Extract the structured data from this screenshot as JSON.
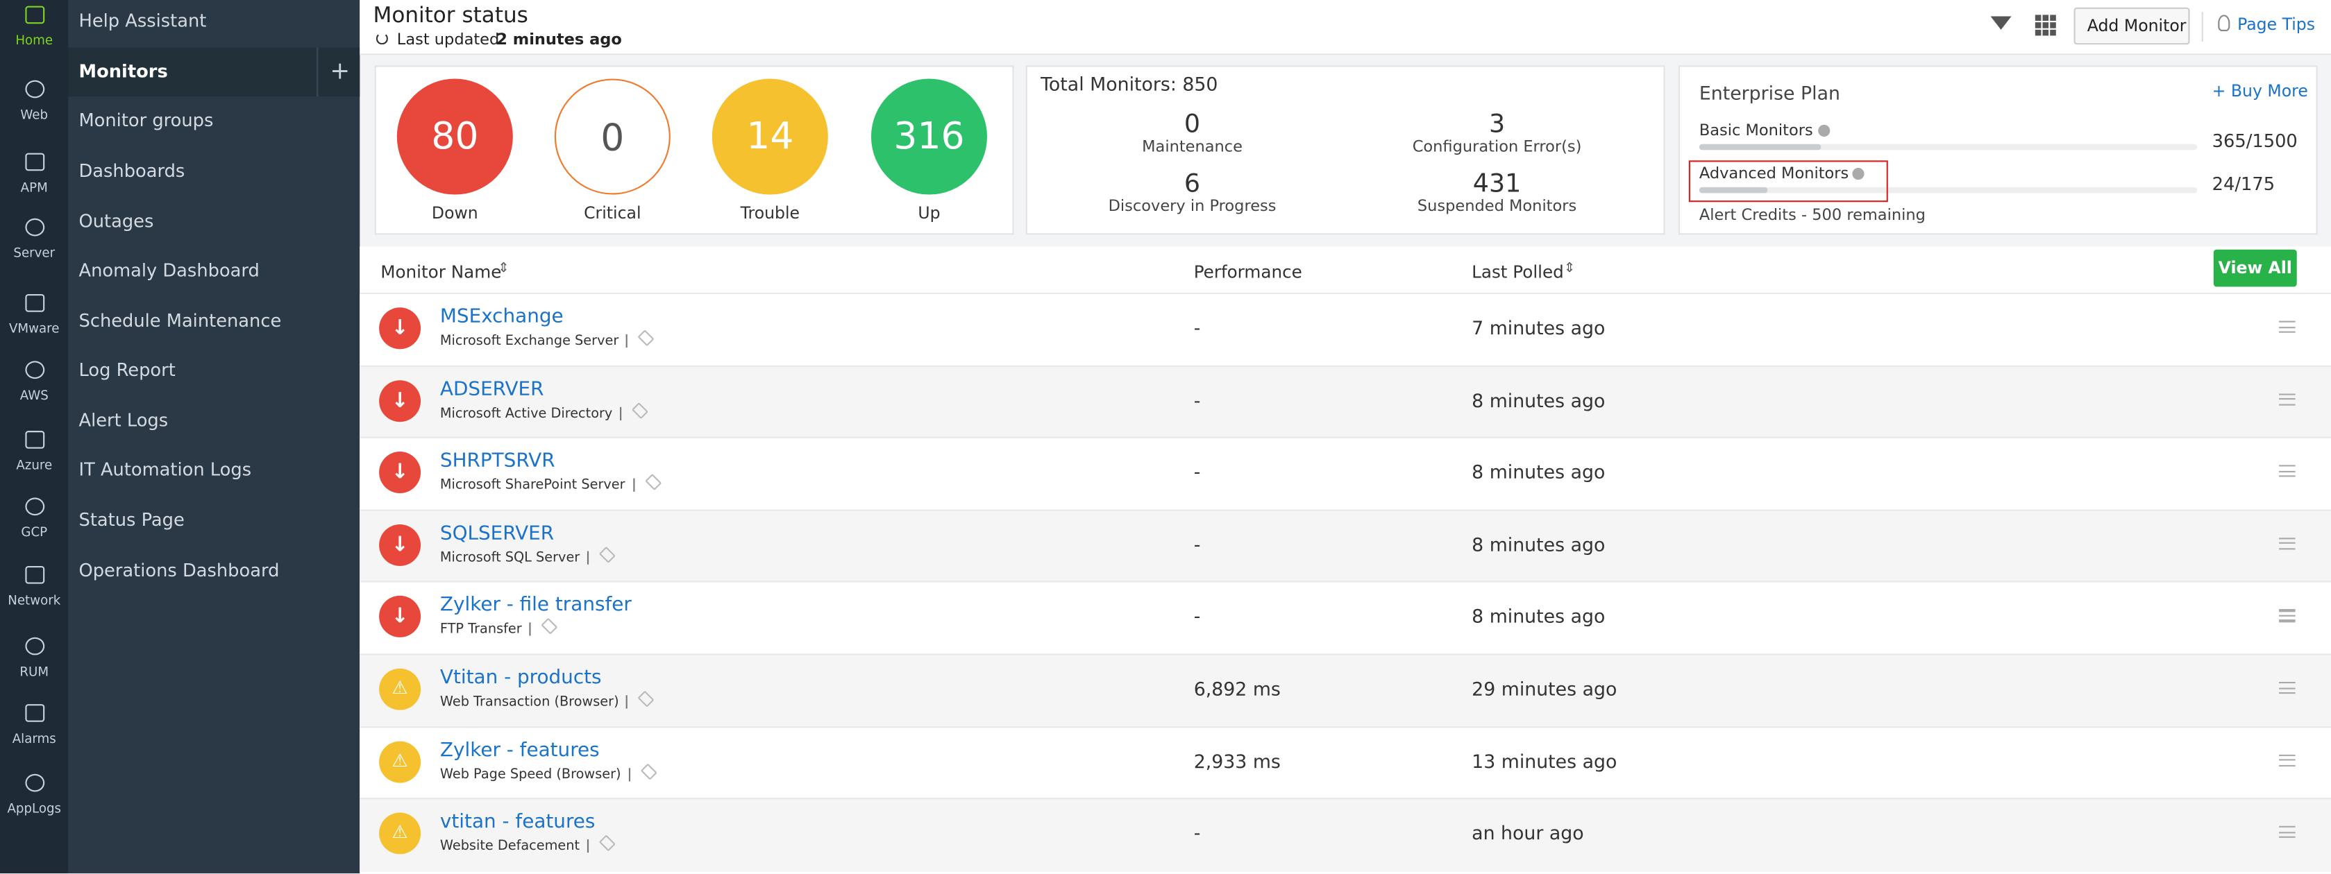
{
  "icon_rail": [
    "Home",
    "Web",
    "APM",
    "Server",
    "VMware",
    "AWS",
    "Azure",
    "GCP",
    "Network",
    "RUM",
    "Alarms",
    "AppLogs"
  ],
  "menu": [
    "Help Assistant",
    "Monitors",
    "Monitor groups",
    "Dashboards",
    "Outages",
    "Anomaly Dashboard",
    "Schedule Maintenance",
    "Log Report",
    "Alert Logs",
    "IT Automation Logs",
    "Status Page",
    "Operations Dashboard"
  ],
  "header": {
    "title": "Monitor status",
    "updated_prefix": "Last updated",
    "updated_value": "2 minutes ago",
    "add_button": "Add Monitor",
    "page_tips": "Page Tips"
  },
  "status": [
    {
      "count": 80,
      "label": "Down",
      "color": "#e8483b"
    },
    {
      "count": 0,
      "label": "Critical",
      "color": "#f07a2e"
    },
    {
      "count": 14,
      "label": "Trouble",
      "color": "#f5c12e"
    },
    {
      "count": 316,
      "label": "Up",
      "color": "#2ec16c"
    }
  ],
  "totals": {
    "title": "Total Monitors: 850",
    "items": [
      {
        "value": 0,
        "label": "Maintenance"
      },
      {
        "value": 3,
        "label": "Configuration Error(s)"
      },
      {
        "value": 6,
        "label": "Discovery in Progress"
      },
      {
        "value": 431,
        "label": "Suspended Monitors"
      }
    ]
  },
  "plan": {
    "title": "Enterprise Plan",
    "buy_more": "+ Buy More",
    "rows": [
      {
        "label": "Basic Monitors",
        "usage": "365/1500"
      },
      {
        "label": "Advanced Monitors",
        "usage": "24/175"
      }
    ],
    "credits": "Alert Credits - 500 remaining"
  },
  "table": {
    "columns": [
      "Monitor Name",
      "Performance",
      "Last Polled"
    ],
    "view_all": "View All",
    "rows": [
      {
        "status": "down",
        "name": "MSExchange",
        "type": "Microsoft Exchange Server",
        "performance": "-",
        "last_polled": "7 minutes ago"
      },
      {
        "status": "down",
        "name": "ADSERVER",
        "type": "Microsoft Active Directory",
        "performance": "-",
        "last_polled": "8 minutes ago"
      },
      {
        "status": "down",
        "name": "SHRPTSRVR",
        "type": "Microsoft SharePoint Server",
        "performance": "-",
        "last_polled": "8 minutes ago"
      },
      {
        "status": "down",
        "name": "SQLSERVER",
        "type": "Microsoft SQL Server",
        "performance": "-",
        "last_polled": "8 minutes ago"
      },
      {
        "status": "down",
        "name": "Zylker - file transfer",
        "type": "FTP Transfer",
        "performance": "-",
        "last_polled": "8 minutes ago"
      },
      {
        "status": "trouble",
        "name": "Vtitan - products",
        "type": "Web Transaction (Browser)",
        "performance": "6,892 ms",
        "last_polled": "29 minutes ago"
      },
      {
        "status": "trouble",
        "name": "Zylker - features",
        "type": "Web Page Speed (Browser)",
        "performance": "2,933 ms",
        "last_polled": "13 minutes ago"
      },
      {
        "status": "trouble",
        "name": "vtitan - features",
        "type": "Website Defacement",
        "performance": "-",
        "last_polled": "an hour ago"
      }
    ]
  }
}
